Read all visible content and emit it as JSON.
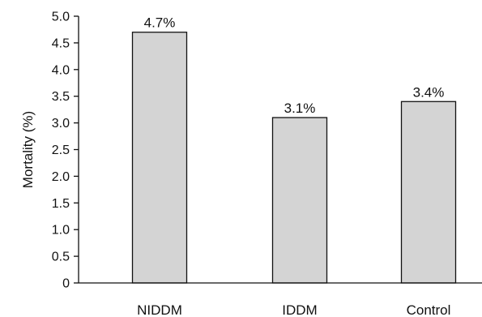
{
  "chart_data": {
    "type": "bar",
    "title": "",
    "xlabel": "",
    "ylabel": "Mortality (%)",
    "ylim": [
      0,
      5.0
    ],
    "yticks": [
      0,
      0.5,
      1.0,
      1.5,
      2.0,
      2.5,
      3.0,
      3.5,
      4.0,
      4.5,
      5.0
    ],
    "ytick_labels": [
      "0",
      "0.5",
      "1.0",
      "1.5",
      "2.0",
      "2.5",
      "3.0",
      "3.5",
      "4.0",
      "4.5",
      "5.0"
    ],
    "categories": [
      "NIDDM",
      "IDDM",
      "Control"
    ],
    "values": [
      4.7,
      3.1,
      3.4
    ],
    "data_labels": [
      "4.7%",
      "3.1%",
      "3.4%"
    ],
    "grid": false,
    "legend": "none",
    "colors": {
      "bar_fill": "#d4d4d4",
      "bar_stroke": "#111111",
      "axis": "#111111"
    }
  }
}
